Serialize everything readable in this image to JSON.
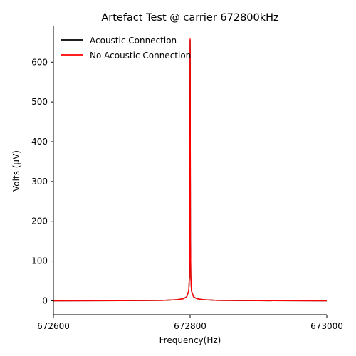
{
  "chart_data": {
    "type": "line",
    "title": "Artefact Test @ carrier 672800kHz",
    "xlabel": "Frequency(Hz)",
    "ylabel": "Volts (μV)",
    "xlim": [
      672600,
      673000
    ],
    "ylim": [
      -35,
      690
    ],
    "xticks": [
      672600,
      672800,
      673000
    ],
    "yticks": [
      0,
      100,
      200,
      300,
      400,
      500,
      600
    ],
    "grid": false,
    "legend_position": "top-left",
    "series": [
      {
        "name": "Acoustic Connection",
        "color": "#000000",
        "x": [
          672600,
          672700,
          672760,
          672780,
          672790,
          672795,
          672798,
          672799,
          672799.5,
          672800,
          672800.5,
          672801,
          672802,
          672805,
          672810,
          672820,
          672840,
          672900,
          673000
        ],
        "y": [
          0,
          0.3,
          1,
          2.5,
          5,
          10,
          25,
          60,
          150,
          655,
          150,
          60,
          25,
          10,
          5,
          2.5,
          1,
          0.3,
          0
        ]
      },
      {
        "name": "No Acoustic Connection",
        "color": "#ff0000",
        "x": [
          672600,
          672700,
          672760,
          672780,
          672790,
          672795,
          672798,
          672799,
          672799.5,
          672800,
          672800.5,
          672801,
          672802,
          672805,
          672810,
          672820,
          672840,
          672900,
          673000
        ],
        "y": [
          0,
          0.3,
          1,
          2.5,
          5,
          10,
          25,
          60,
          150,
          658,
          150,
          60,
          25,
          10,
          5,
          2.5,
          1,
          0.3,
          0
        ]
      }
    ]
  }
}
